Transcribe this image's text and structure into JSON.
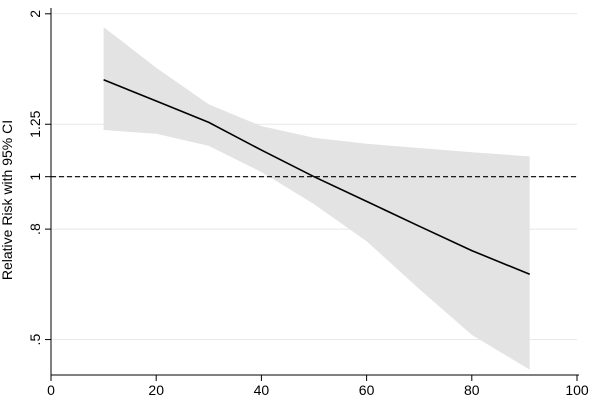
{
  "chart_data": {
    "type": "line",
    "title": "",
    "xlabel": "",
    "ylabel": "Relative Risk with 95% CI",
    "scale_y": "log",
    "xlim": [
      0,
      100
    ],
    "ylim": [
      0.43,
      2.05
    ],
    "grid": "horizontal",
    "x_ticks": [
      0,
      20,
      40,
      60,
      80,
      100
    ],
    "x_tick_labels": [
      "0",
      "20",
      "40",
      "60",
      "80",
      "100"
    ],
    "y_ticks": [
      0.5,
      0.8,
      1.0,
      1.25,
      2.0
    ],
    "y_tick_labels": [
      ".5",
      ".8",
      "1",
      "1.25",
      "2"
    ],
    "reference_line": {
      "y": 1.0,
      "style": "dashed"
    },
    "series": [
      {
        "x": [
          10,
          20,
          30,
          40,
          50,
          60,
          70,
          80,
          91
        ],
        "y": [
          1.51,
          1.38,
          1.26,
          1.12,
          1.0,
          0.9,
          0.81,
          0.73,
          0.66
        ],
        "lower": [
          1.22,
          1.2,
          1.14,
          1.02,
          0.89,
          0.76,
          0.62,
          0.51,
          0.44
        ],
        "upper": [
          1.89,
          1.59,
          1.36,
          1.24,
          1.18,
          1.15,
          1.13,
          1.11,
          1.09
        ]
      }
    ],
    "colors": {
      "line": "#000000",
      "band": "#e3e3e3",
      "grid": "#e8e8e8",
      "axis": "#000000"
    }
  }
}
